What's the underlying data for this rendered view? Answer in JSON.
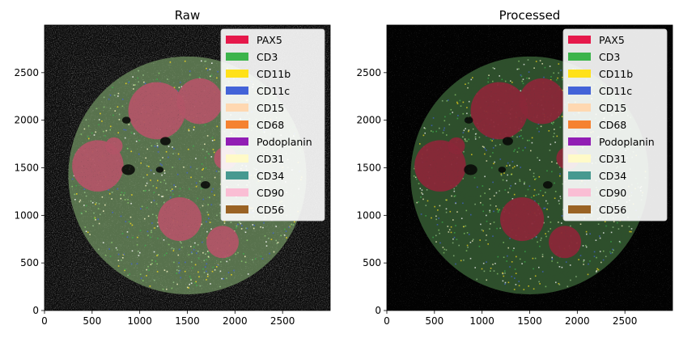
{
  "panels": [
    {
      "title": "Raw",
      "variant": "raw"
    },
    {
      "title": "Processed",
      "variant": "processed"
    }
  ],
  "axes": {
    "x_range": [
      0,
      3000
    ],
    "y_range": [
      0,
      3000
    ],
    "x_ticks": [
      0,
      500,
      1000,
      1500,
      2000,
      2500
    ],
    "y_ticks": [
      0,
      500,
      1000,
      1500,
      2000,
      2500
    ]
  },
  "legend": {
    "placement": "upper-right",
    "entries": [
      {
        "label": "PAX5",
        "color": "#e6194b"
      },
      {
        "label": "CD3",
        "color": "#3cb44b"
      },
      {
        "label": "CD11b",
        "color": "#ffe119"
      },
      {
        "label": "CD11c",
        "color": "#4363d8"
      },
      {
        "label": "CD15",
        "color": "#ffd8b1"
      },
      {
        "label": "CD68",
        "color": "#f58231"
      },
      {
        "label": "Podoplanin",
        "color": "#911eb4"
      },
      {
        "label": "CD31",
        "color": "#fffac8"
      },
      {
        "label": "CD34",
        "color": "#469990"
      },
      {
        "label": "CD90",
        "color": "#fabed4"
      },
      {
        "label": "CD56",
        "color": "#9a6324"
      }
    ]
  }
}
